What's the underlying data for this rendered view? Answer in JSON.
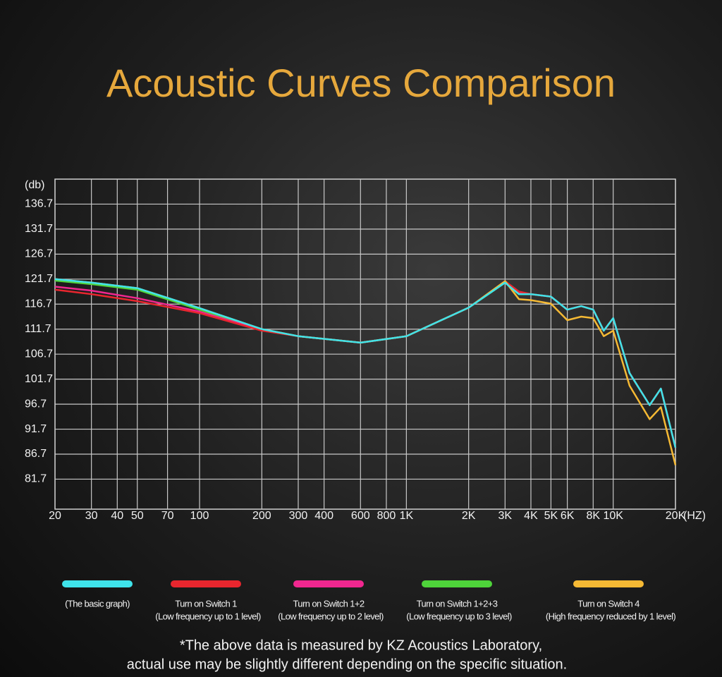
{
  "chart_data": {
    "type": "line",
    "title": "Acoustic Curves Comparison",
    "y_label": "(db)",
    "x_label": "(HZ)",
    "log_x": true,
    "grid": true,
    "xlim": [
      20,
      20000
    ],
    "xticks": [
      20,
      30,
      40,
      50,
      70,
      100,
      200,
      300,
      400,
      600,
      800,
      {
        "value": 1000,
        "label": "1K"
      },
      {
        "value": 2000,
        "label": "2K"
      },
      {
        "value": 3000,
        "label": "3K"
      },
      {
        "value": 4000,
        "label": "4K"
      },
      {
        "value": 5000,
        "label": "5K"
      },
      {
        "value": 6000,
        "label": "6K"
      },
      {
        "value": 8000,
        "label": "8K"
      },
      {
        "value": 10000,
        "label": "10K"
      },
      {
        "value": 20000,
        "label": "20K"
      }
    ],
    "ylim": [
      75.7,
      141.7
    ],
    "yticks": [
      136.7,
      131.7,
      126.7,
      121.7,
      116.7,
      111.7,
      106.7,
      101.7,
      96.7,
      91.7,
      86.7,
      81.7
    ],
    "x": [
      20,
      30,
      50,
      100,
      200,
      300,
      600,
      1000,
      2000,
      3000,
      3500,
      4000,
      5000,
      6000,
      7000,
      8000,
      9000,
      10000,
      12000,
      15000,
      17000,
      20000
    ],
    "series": [
      {
        "name": "(The basic graph)",
        "color": "#3fe3ea",
        "values": [
          121.7,
          121.0,
          119.9,
          115.9,
          111.7,
          110.3,
          109.0,
          110.3,
          116.0,
          121.0,
          118.7,
          118.7,
          118.2,
          115.6,
          116.3,
          115.6,
          111.4,
          113.9,
          102.9,
          96.5,
          99.8,
          88.0
        ]
      },
      {
        "name": "Turn on Switch 1",
        "detail": "(Low frequency up to 1 level)",
        "color": "#e8262e",
        "values": [
          119.6,
          118.7,
          117.3,
          114.9,
          111.4,
          110.3,
          109.0,
          110.3,
          116.0,
          121.3,
          119.2,
          118.7,
          118.2,
          115.6,
          116.3,
          115.6,
          111.4,
          113.9,
          102.9,
          96.5,
          99.8,
          88.0
        ]
      },
      {
        "name": "Turn on Switch 1+2",
        "detail": "(Low frequency up to 2 level)",
        "color": "#f0278f",
        "values": [
          120.2,
          119.4,
          117.9,
          115.2,
          111.5,
          110.3,
          109.0,
          110.3,
          116.0,
          121.2,
          118.9,
          118.7,
          118.2,
          115.6,
          116.3,
          115.6,
          111.4,
          113.9,
          102.9,
          96.5,
          99.8,
          88.0
        ]
      },
      {
        "name": "Turn on Switch 1+2+3",
        "detail": "(Low frequency up to 3 level)",
        "color": "#4ed43a",
        "values": [
          121.4,
          120.7,
          119.6,
          115.6,
          111.6,
          110.3,
          109.0,
          110.3,
          116.0,
          121.0,
          118.7,
          118.7,
          118.2,
          115.6,
          116.3,
          115.6,
          111.4,
          113.9,
          102.9,
          96.5,
          99.8,
          88.0
        ]
      },
      {
        "name": "Turn on Switch 4",
        "detail": "(High frequency reduced by 1 level)",
        "color": "#f5b934",
        "values": [
          121.7,
          121.0,
          119.9,
          115.9,
          111.7,
          110.3,
          109.0,
          110.3,
          116.0,
          121.3,
          117.7,
          117.5,
          116.8,
          113.5,
          114.2,
          113.9,
          110.3,
          111.4,
          100.4,
          93.7,
          96.1,
          84.5
        ]
      }
    ],
    "footnote": [
      "*The above data is measured by KZ Acoustics Laboratory,",
      "actual use may be slightly different depending on the specific situation."
    ]
  }
}
